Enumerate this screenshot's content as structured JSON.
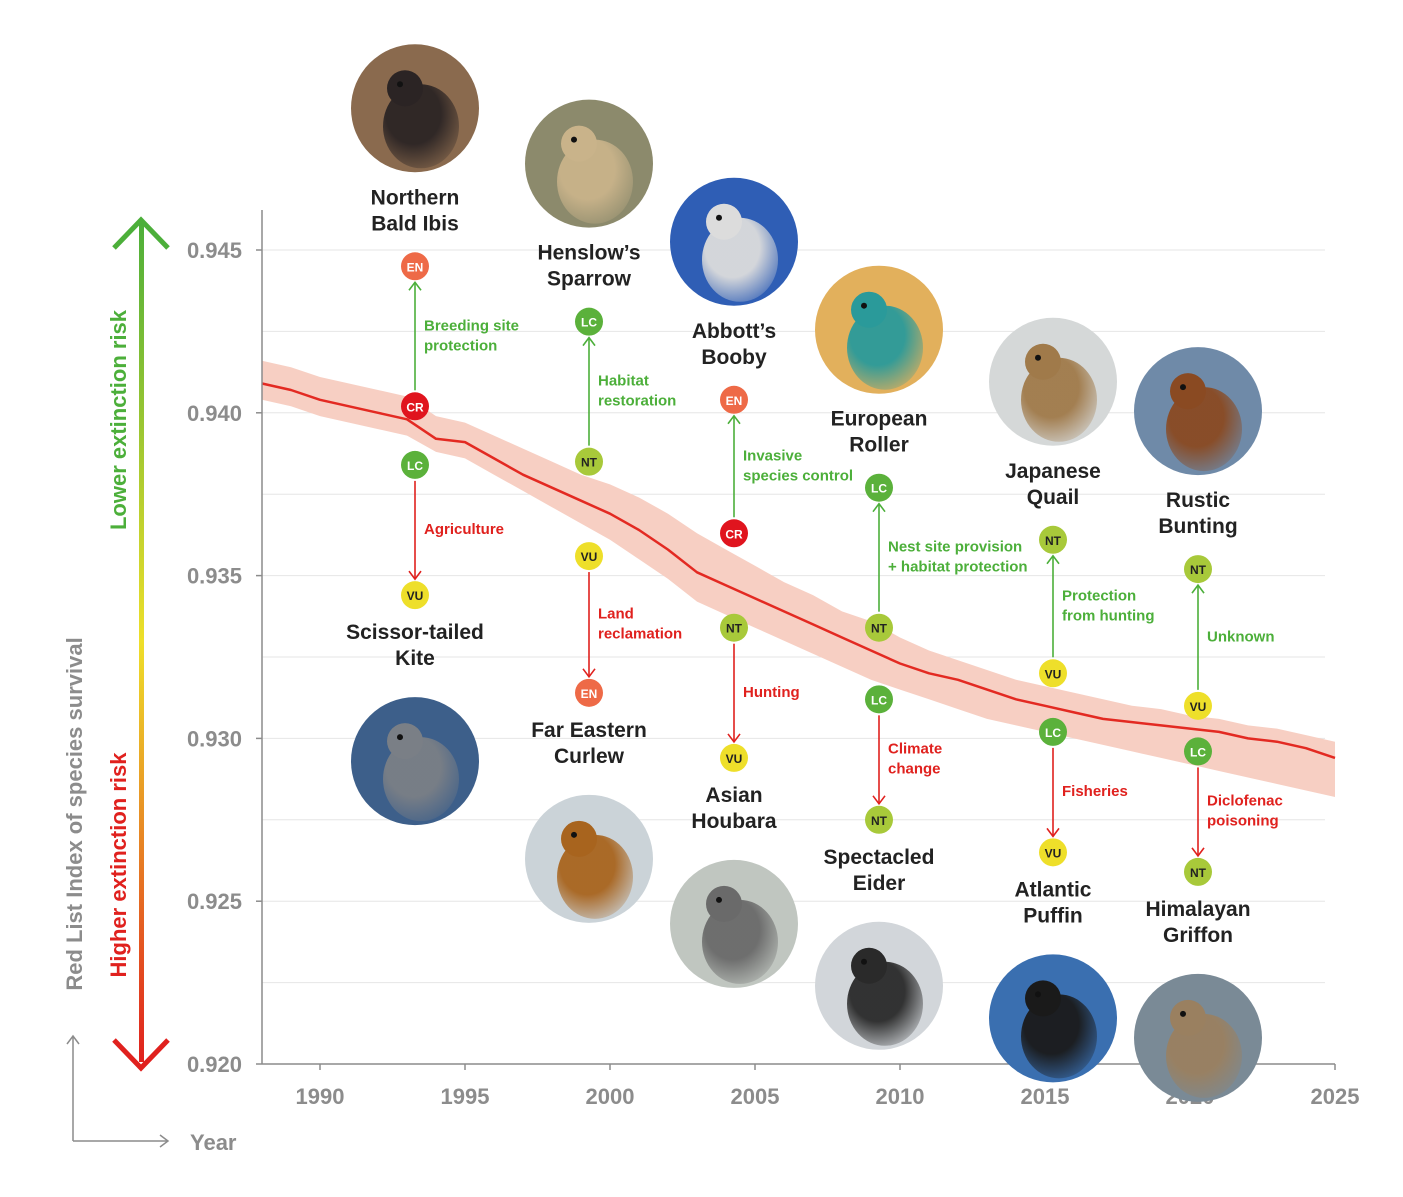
{
  "colors": {
    "improve": "#4caf3a",
    "decline": "#e0211e",
    "EN": "#ee6a47",
    "CR": "#e0141e",
    "LC": "#5bb13b",
    "NT": "#a8c93a",
    "VU": "#eedf2a",
    "line": "#e32a22",
    "band": "#f7cfc3",
    "grid": "#e6e6e6",
    "axis": "#8c8c8c"
  },
  "axes": {
    "ylabel": "Red List Index of species survival",
    "xlabel": "Year",
    "lower_risk_label": "Lower extinction risk",
    "higher_risk_label": "Higher extinction risk"
  },
  "chart_data": {
    "type": "line",
    "xlim": [
      1988,
      2025
    ],
    "ylim": [
      0.92,
      0.946
    ],
    "xticks": [
      "1990",
      "1995",
      "2000",
      "2005",
      "2010",
      "2015",
      "2020",
      "2025"
    ],
    "yticks": [
      "0.920",
      "0.925",
      "0.930",
      "0.935",
      "0.940",
      "0.945"
    ],
    "grid": true,
    "series": [
      {
        "x": [
          1988,
          1989,
          1990,
          1991,
          1992,
          1993,
          1994,
          1995,
          1996,
          1997,
          1998,
          1999,
          2000,
          2001,
          2002,
          2003,
          2004,
          2005,
          2006,
          2007,
          2008,
          2009,
          2010,
          2011,
          2012,
          2013,
          2014,
          2015,
          2016,
          2017,
          2018,
          2019,
          2020,
          2021,
          2022,
          2023,
          2024,
          2025
        ],
        "y": [
          0.9409,
          0.9407,
          0.9404,
          0.9402,
          0.94,
          0.9398,
          0.9392,
          0.9391,
          0.9386,
          0.9381,
          0.9377,
          0.9373,
          0.9369,
          0.9364,
          0.9358,
          0.9351,
          0.9347,
          0.9343,
          0.9339,
          0.9335,
          0.9331,
          0.9327,
          0.9323,
          0.932,
          0.9318,
          0.9315,
          0.9312,
          0.931,
          0.9308,
          0.9306,
          0.9305,
          0.9304,
          0.9303,
          0.9302,
          0.93,
          0.9299,
          0.9297,
          0.9294
        ],
        "lower": [
          0.9404,
          0.9402,
          0.9399,
          0.9397,
          0.9395,
          0.9393,
          0.9388,
          0.9386,
          0.9381,
          0.9376,
          0.9371,
          0.9366,
          0.9361,
          0.9355,
          0.9349,
          0.9342,
          0.9338,
          0.9334,
          0.933,
          0.9326,
          0.9322,
          0.9318,
          0.9315,
          0.9312,
          0.9309,
          0.9306,
          0.9304,
          0.9302,
          0.93,
          0.9298,
          0.9296,
          0.9294,
          0.9292,
          0.929,
          0.9288,
          0.9286,
          0.9284,
          0.9282
        ],
        "upper": [
          0.9416,
          0.9414,
          0.9411,
          0.9409,
          0.9407,
          0.9405,
          0.9399,
          0.9397,
          0.9393,
          0.9389,
          0.9385,
          0.9381,
          0.9378,
          0.9374,
          0.9369,
          0.9363,
          0.9358,
          0.9353,
          0.9348,
          0.9344,
          0.9339,
          0.9336,
          0.9331,
          0.9327,
          0.9324,
          0.9321,
          0.9318,
          0.9316,
          0.9314,
          0.9312,
          0.931,
          0.9309,
          0.9307,
          0.9306,
          0.9304,
          0.9303,
          0.9301,
          0.9299
        ]
      }
    ],
    "annotations": [
      {
        "year": 1993,
        "name": "Northern\nBald Ibis",
        "direction": "up",
        "from": "CR",
        "to": "EN",
        "reason": "Breeding site\nprotection",
        "from_y": 0.9402,
        "to_y": 0.9445,
        "image_colors": [
          "#8a6a4e",
          "#2b2424"
        ]
      },
      {
        "year": 1993,
        "name": "Scissor-tailed\nKite",
        "direction": "down",
        "from": "LC",
        "to": "VU",
        "reason": "Agriculture",
        "from_y": 0.9384,
        "to_y": 0.9344,
        "image_colors": [
          "#3d5f8a",
          "#7a7f86"
        ]
      },
      {
        "year": 1999,
        "name": "Henslow’s\nSparrow",
        "direction": "up",
        "from": "NT",
        "to": "LC",
        "reason": "Habitat\nrestoration",
        "from_y": 0.9385,
        "to_y": 0.9428,
        "image_colors": [
          "#8c8a6c",
          "#c9b38a"
        ]
      },
      {
        "year": 1999,
        "name": "Far Eastern\nCurlew",
        "direction": "down",
        "from": "VU",
        "to": "EN",
        "reason": "Land\nreclamation",
        "from_y": 0.9356,
        "to_y": 0.9314,
        "image_colors": [
          "#cbd3d8",
          "#a8641e"
        ]
      },
      {
        "year": 2004,
        "name": "Abbott’s\nBooby",
        "direction": "up",
        "from": "CR",
        "to": "EN",
        "reason": "Invasive\nspecies control",
        "from_y": 0.9363,
        "to_y": 0.9404,
        "image_colors": [
          "#2f5eb5",
          "#dcdcdc"
        ]
      },
      {
        "year": 2004,
        "name": "Asian\nHoubara",
        "direction": "down",
        "from": "NT",
        "to": "VU",
        "reason": "Hunting",
        "from_y": 0.9334,
        "to_y": 0.9294,
        "image_colors": [
          "#c0c6c0",
          "#6a6a6a"
        ]
      },
      {
        "year": 2009,
        "name": "European\nRoller",
        "direction": "up",
        "from": "NT",
        "to": "LC",
        "reason": "Nest site provision\n+ habitat protection",
        "from_y": 0.9334,
        "to_y": 0.9377,
        "image_colors": [
          "#e2b05c",
          "#2a9a9a"
        ]
      },
      {
        "year": 2009,
        "name": "Spectacled\nEider",
        "direction": "down",
        "from": "LC",
        "to": "NT",
        "reason": "Climate\nchange",
        "from_y": 0.9312,
        "to_y": 0.9275,
        "image_colors": [
          "#d2d6da",
          "#2a2a2a"
        ]
      },
      {
        "year": 2015,
        "name": "Japanese\nQuail",
        "direction": "up",
        "from": "VU",
        "to": "NT",
        "reason": "Protection\nfrom hunting",
        "from_y": 0.932,
        "to_y": 0.9361,
        "image_colors": [
          "#d5d8d8",
          "#a07a4a"
        ]
      },
      {
        "year": 2015,
        "name": "Atlantic\nPuffin",
        "direction": "down",
        "from": "LC",
        "to": "VU",
        "reason": "Fisheries",
        "from_y": 0.9302,
        "to_y": 0.9265,
        "image_colors": [
          "#3a6fb0",
          "#1a1a1a"
        ]
      },
      {
        "year": 2020,
        "name": "Rustic\nBunting",
        "direction": "up",
        "from": "VU",
        "to": "NT",
        "reason": "Unknown",
        "from_y": 0.931,
        "to_y": 0.9352,
        "image_colors": [
          "#6f8aa8",
          "#8a4a22"
        ]
      },
      {
        "year": 2020,
        "name": "Himalayan\nGriffon",
        "direction": "down",
        "from": "LC",
        "to": "NT",
        "reason": "Diclofenac\npoisoning",
        "from_y": 0.9296,
        "to_y": 0.9259,
        "image_colors": [
          "#7a8a96",
          "#9a8060"
        ]
      }
    ]
  }
}
